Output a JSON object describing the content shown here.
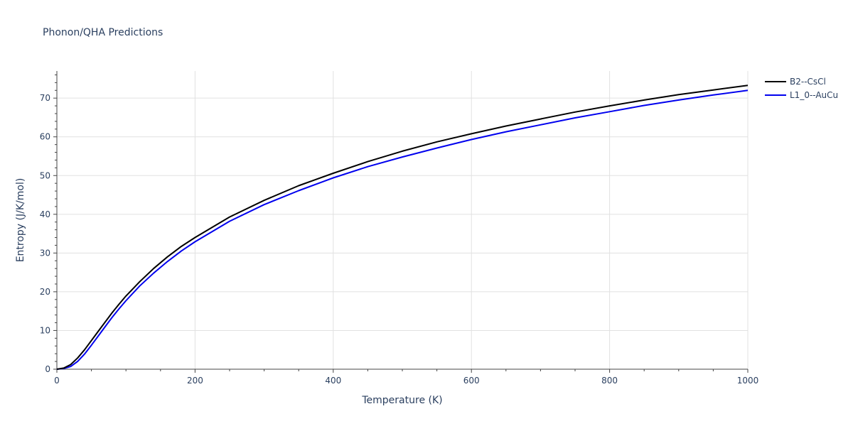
{
  "chart_data": {
    "type": "line",
    "title": "Phonon/QHA Predictions",
    "xlabel": "Temperature (K)",
    "ylabel": "Entropy (J/K/mol)",
    "xlim": [
      0,
      1000
    ],
    "ylim": [
      0,
      77
    ],
    "x_ticks": [
      0,
      200,
      400,
      600,
      800,
      1000
    ],
    "y_ticks": [
      0,
      10,
      20,
      30,
      40,
      50,
      60,
      70
    ],
    "grid": true,
    "legend_position": "top-right",
    "series": [
      {
        "name": "B2--CsCl",
        "color": "#000000",
        "x": [
          0,
          10,
          20,
          30,
          40,
          50,
          60,
          70,
          80,
          90,
          100,
          120,
          140,
          160,
          180,
          200,
          250,
          300,
          350,
          400,
          450,
          500,
          550,
          600,
          650,
          700,
          750,
          800,
          850,
          900,
          950,
          1000
        ],
        "y": [
          0,
          0.3,
          1.2,
          2.9,
          5.0,
          7.4,
          9.8,
          12.2,
          14.6,
          16.8,
          18.9,
          22.6,
          26.0,
          29.0,
          31.7,
          34.0,
          39.3,
          43.6,
          47.4,
          50.6,
          53.6,
          56.3,
          58.7,
          60.8,
          62.8,
          64.6,
          66.4,
          68.0,
          69.5,
          70.9,
          72.1,
          73.3
        ]
      },
      {
        "name": "L1_0--AuCu",
        "color": "#0000ee",
        "x": [
          0,
          10,
          20,
          30,
          40,
          50,
          60,
          70,
          80,
          90,
          100,
          120,
          140,
          160,
          180,
          200,
          250,
          300,
          350,
          400,
          450,
          500,
          550,
          600,
          650,
          700,
          750,
          800,
          850,
          900,
          950,
          1000
        ],
        "y": [
          0,
          0.2,
          0.7,
          2.0,
          3.9,
          6.2,
          8.6,
          11.0,
          13.4,
          15.6,
          17.7,
          21.5,
          24.8,
          27.8,
          30.5,
          32.9,
          38.2,
          42.5,
          46.1,
          49.4,
          52.3,
          54.8,
          57.1,
          59.3,
          61.3,
          63.1,
          64.9,
          66.5,
          68.1,
          69.5,
          70.8,
          72.0
        ]
      }
    ]
  }
}
